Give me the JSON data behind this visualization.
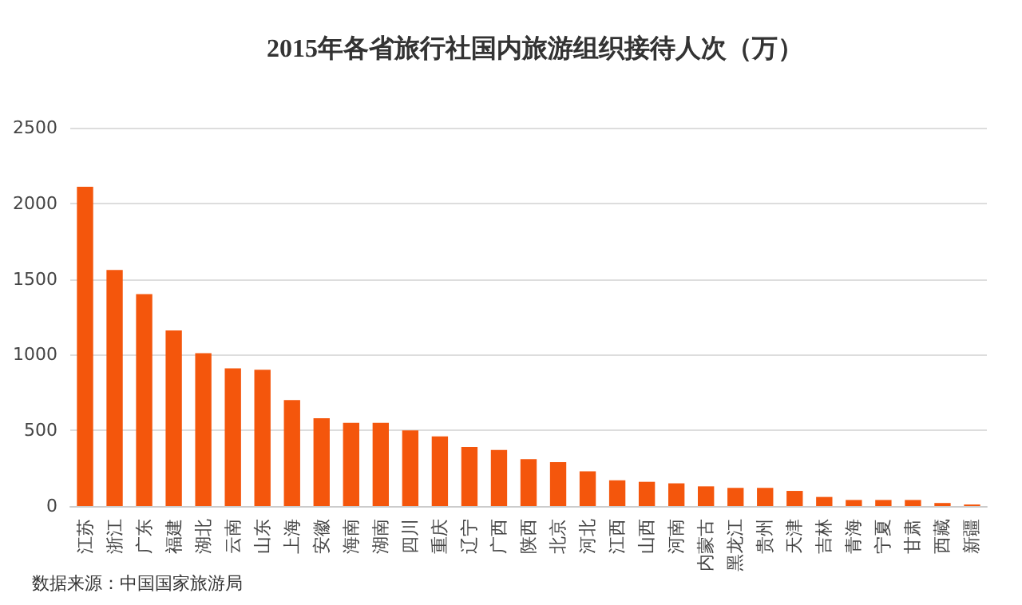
{
  "chart_data": {
    "type": "bar",
    "title": "2015年各省旅行社国内旅游组织接待人次（万）",
    "categories": [
      "江苏",
      "浙江",
      "广东",
      "福建",
      "湖北",
      "云南",
      "山东",
      "上海",
      "安徽",
      "海南",
      "湖南",
      "四川",
      "重庆",
      "辽宁",
      "广西",
      "陕西",
      "北京",
      "河北",
      "江西",
      "山西",
      "河南",
      "内蒙古",
      "黑龙江",
      "贵州",
      "天津",
      "吉林",
      "青海",
      "宁夏",
      "甘肃",
      "西藏",
      "新疆"
    ],
    "values": [
      2110,
      1560,
      1400,
      1160,
      1010,
      910,
      900,
      700,
      580,
      550,
      550,
      500,
      460,
      390,
      370,
      310,
      290,
      230,
      170,
      160,
      150,
      130,
      120,
      120,
      100,
      60,
      40,
      40,
      40,
      20,
      10
    ],
    "color": "#f4560c",
    "ylim": [
      0,
      2500
    ],
    "yticks": [
      0,
      500,
      1000,
      1500,
      2000,
      2500
    ],
    "grid": "y",
    "annotations": [
      "数据来源：中国国家旅游局"
    ]
  }
}
